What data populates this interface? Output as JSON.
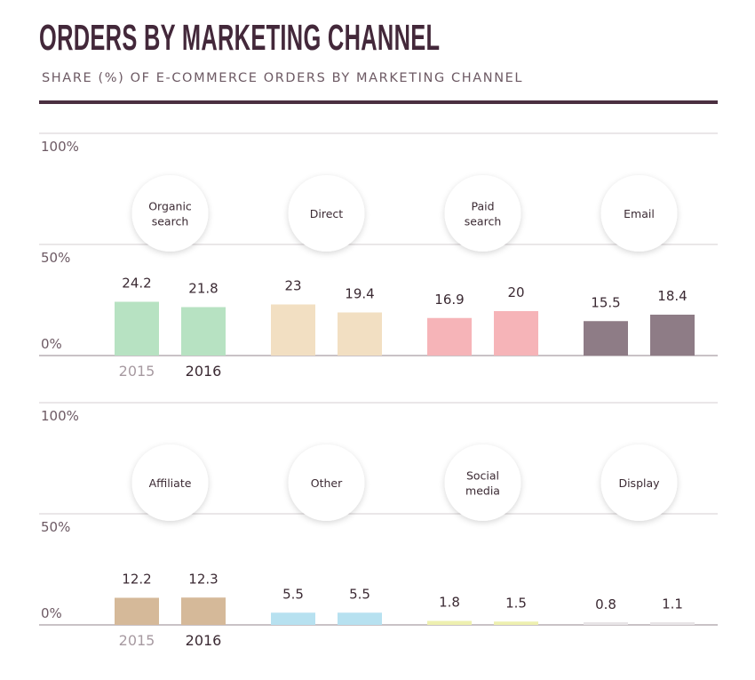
{
  "header": {
    "title": "ORDERS BY MARKETING CHANNEL",
    "subtitle": "SHARE (%) OF E-COMMERCE ORDERS BY MARKETING CHANNEL"
  },
  "chart_data": {
    "type": "bar",
    "ylim": [
      0,
      100
    ],
    "y_tick_labels": [
      "0%",
      "50%",
      "100%"
    ],
    "year_labels": [
      "2015",
      "2016"
    ],
    "grid": true,
    "panels": [
      {
        "categories": [
          {
            "label": "Organic\nsearch",
            "values": [
              24.2,
              21.8
            ],
            "value_labels": [
              "24.2",
              "21.8"
            ],
            "color": "#b7e2c2"
          },
          {
            "label": "Direct",
            "values": [
              23,
              19.4
            ],
            "value_labels": [
              "23",
              "19.4"
            ],
            "color": "#f2dfc2"
          },
          {
            "label": "Paid\nsearch",
            "values": [
              16.9,
              20
            ],
            "value_labels": [
              "16.9",
              "20"
            ],
            "color": "#f6b4b8"
          },
          {
            "label": "Email",
            "values": [
              15.5,
              18.4
            ],
            "value_labels": [
              "15.5",
              "18.4"
            ],
            "color": "#8e7c86"
          }
        ]
      },
      {
        "categories": [
          {
            "label": "Affiliate",
            "values": [
              12.2,
              12.3
            ],
            "value_labels": [
              "12.2",
              "12.3"
            ],
            "color": "#d5b999"
          },
          {
            "label": "Other",
            "values": [
              5.5,
              5.5
            ],
            "value_labels": [
              "5.5",
              "5.5"
            ],
            "color": "#b7e1f0"
          },
          {
            "label": "Social\nmedia",
            "values": [
              1.8,
              1.5
            ],
            "value_labels": [
              "1.8",
              "1.5"
            ],
            "color": "#eef0b0"
          },
          {
            "label": "Display",
            "values": [
              0.8,
              1.1
            ],
            "value_labels": [
              "0.8",
              "1.1"
            ],
            "color": "#e7e4e6"
          }
        ]
      }
    ]
  }
}
